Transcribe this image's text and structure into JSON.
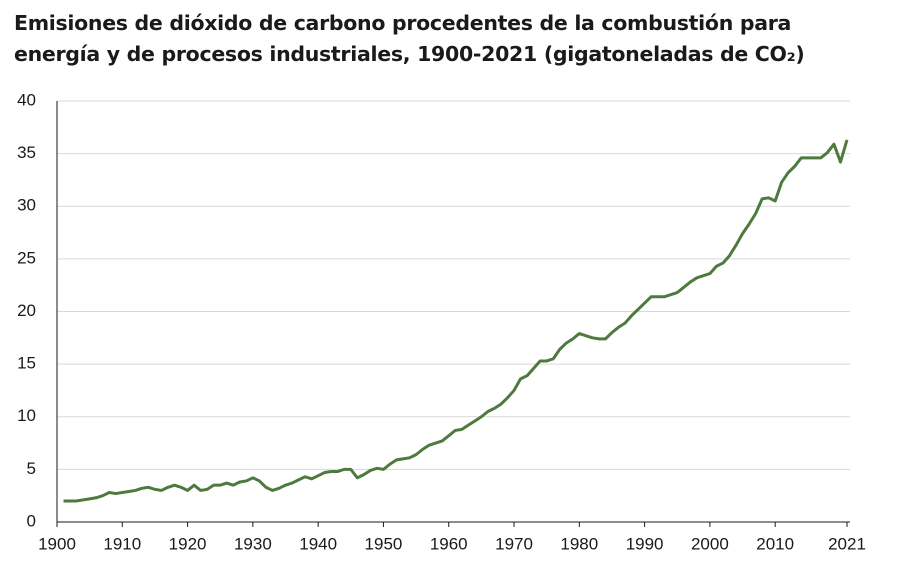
{
  "chart_data": {
    "type": "line",
    "title": "Emisiones de dióxido de carbono procedentes de la combustión para energía y de procesos industriales, 1900-2021 (gigatoneladas de CO₂)",
    "x": [
      1901,
      1902,
      1903,
      1904,
      1905,
      1906,
      1907,
      1908,
      1909,
      1910,
      1911,
      1912,
      1913,
      1914,
      1915,
      1916,
      1917,
      1918,
      1919,
      1920,
      1921,
      1922,
      1923,
      1924,
      1925,
      1926,
      1927,
      1928,
      1929,
      1930,
      1931,
      1932,
      1933,
      1934,
      1935,
      1936,
      1937,
      1938,
      1939,
      1940,
      1941,
      1942,
      1943,
      1944,
      1945,
      1946,
      1947,
      1948,
      1949,
      1950,
      1951,
      1952,
      1953,
      1954,
      1955,
      1956,
      1957,
      1958,
      1959,
      1960,
      1961,
      1962,
      1963,
      1964,
      1965,
      1966,
      1967,
      1968,
      1969,
      1970,
      1971,
      1972,
      1973,
      1974,
      1975,
      1976,
      1977,
      1978,
      1979,
      1980,
      1981,
      1982,
      1983,
      1984,
      1985,
      1986,
      1987,
      1988,
      1989,
      1990,
      1991,
      1992,
      1993,
      1994,
      1995,
      1996,
      1997,
      1998,
      1999,
      2000,
      2001,
      2002,
      2003,
      2004,
      2005,
      2006,
      2007,
      2008,
      2009,
      2010,
      2011,
      2012,
      2013,
      2014,
      2015,
      2016,
      2017,
      2018,
      2019,
      2020,
      2021
    ],
    "series": [
      {
        "color": "#4e7a3e",
        "values": [
          2.0,
          2.0,
          2.0,
          2.1,
          2.2,
          2.3,
          2.5,
          2.8,
          2.7,
          2.8,
          2.9,
          3.0,
          3.2,
          3.3,
          3.1,
          3.0,
          3.3,
          3.5,
          3.3,
          3.0,
          3.5,
          3.0,
          3.1,
          3.5,
          3.5,
          3.7,
          3.5,
          3.8,
          3.9,
          4.2,
          3.9,
          3.3,
          3.0,
          3.2,
          3.5,
          3.7,
          4.0,
          4.3,
          4.1,
          4.4,
          4.7,
          4.8,
          4.8,
          5.0,
          5.0,
          4.2,
          4.5,
          4.9,
          5.1,
          5.0,
          5.5,
          5.9,
          6.0,
          6.1,
          6.4,
          6.9,
          7.3,
          7.5,
          7.7,
          8.2,
          8.7,
          8.8,
          9.2,
          9.6,
          10.0,
          10.5,
          10.8,
          11.2,
          11.8,
          12.5,
          13.6,
          13.9,
          14.6,
          15.3,
          15.3,
          15.5,
          16.4,
          17.0,
          17.4,
          17.9,
          17.7,
          17.5,
          17.4,
          17.4,
          18.0,
          18.5,
          18.9,
          19.6,
          20.2,
          20.8,
          21.4,
          21.4,
          21.4,
          21.6,
          21.8,
          22.3,
          22.8,
          23.2,
          23.4,
          23.6,
          24.3,
          24.6,
          25.3,
          26.3,
          27.4,
          28.3,
          29.3,
          30.7,
          30.8,
          30.5,
          32.3,
          33.2,
          33.8,
          34.6,
          34.6,
          34.6,
          34.6,
          35.1,
          35.9,
          34.2,
          36.3
        ]
      }
    ],
    "xlim": [
      1900,
      2021
    ],
    "xticks": [
      1900,
      1910,
      1920,
      1930,
      1940,
      1950,
      1960,
      1970,
      1980,
      1990,
      2000,
      2010,
      2021
    ],
    "ylim": [
      0,
      40
    ],
    "yticks": [
      0,
      5,
      10,
      15,
      20,
      25,
      30,
      35,
      40
    ],
    "grid": true
  }
}
